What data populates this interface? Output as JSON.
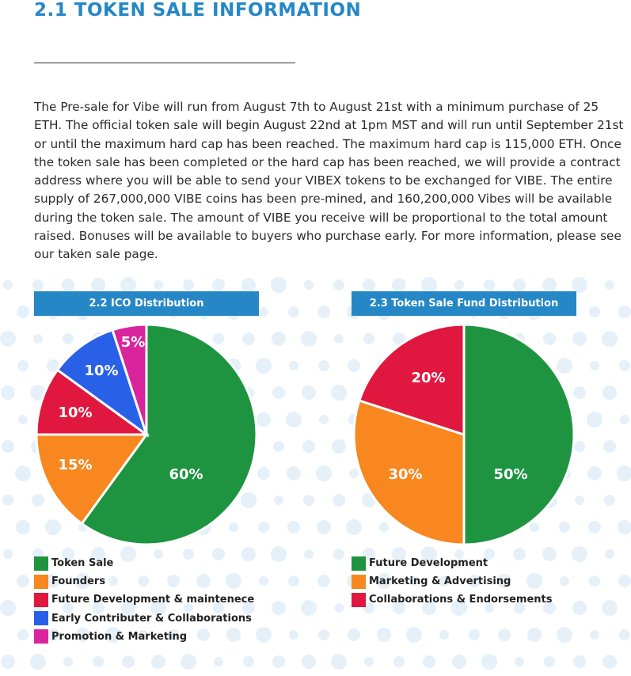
{
  "section": {
    "title": "2.1 TOKEN SALE INFORMATION",
    "paragraph": "The Pre-sale for Vibe will run from August 7th to August 21st with a minimum purchase of 25 ETH. The official token sale will begin August 22nd at 1pm MST and will run until September 21st or until the maximum hard cap has been reached. The maximum hard cap is 115,000 ETH. Once the token sale has been completed or the hard cap has been reached, we will provide a contract address where you will be able to send your VIBEX tokens to be exchanged for VIBE. The entire supply of 267,000,000 VIBE coins has been pre-mined, and 160,200,000 Vibes will be available during the token sale. The amount of VIBE you receive will be proportional to the total amount raised. Bonuses will be available to buyers who purchase early. For more information, please see our taken sale page."
  },
  "colors": {
    "heading": "#2587c6",
    "header_bg": "#2587c6",
    "dots": "#e6f0f8"
  },
  "chart_data": [
    {
      "type": "pie",
      "title": "2.2 ICO Distribution",
      "slices": [
        {
          "label": "Token Sale",
          "value": 60,
          "display": "60%",
          "color": "#1e9441"
        },
        {
          "label": "Founders",
          "value": 15,
          "display": "15%",
          "color": "#f7871e"
        },
        {
          "label": "Future Development & maintenece",
          "value": 10,
          "display": "10%",
          "color": "#e0183f"
        },
        {
          "label": "Early Contributer & Collaborations",
          "value": 10,
          "display": "10%",
          "color": "#2860e8"
        },
        {
          "label": "Promotion & Marketing",
          "value": 5,
          "display": "5%",
          "color": "#d9259d"
        }
      ]
    },
    {
      "type": "pie",
      "title": "2.3 Token Sale Fund Distribution",
      "slices": [
        {
          "label": "Future Development",
          "value": 50,
          "display": "50%",
          "color": "#1e9441"
        },
        {
          "label": "Marketing & Advertising",
          "value": 30,
          "display": "30%",
          "color": "#f7871e"
        },
        {
          "label": "Collaborations & Endorsements",
          "value": 20,
          "display": "20%",
          "color": "#e0183f"
        }
      ]
    }
  ]
}
